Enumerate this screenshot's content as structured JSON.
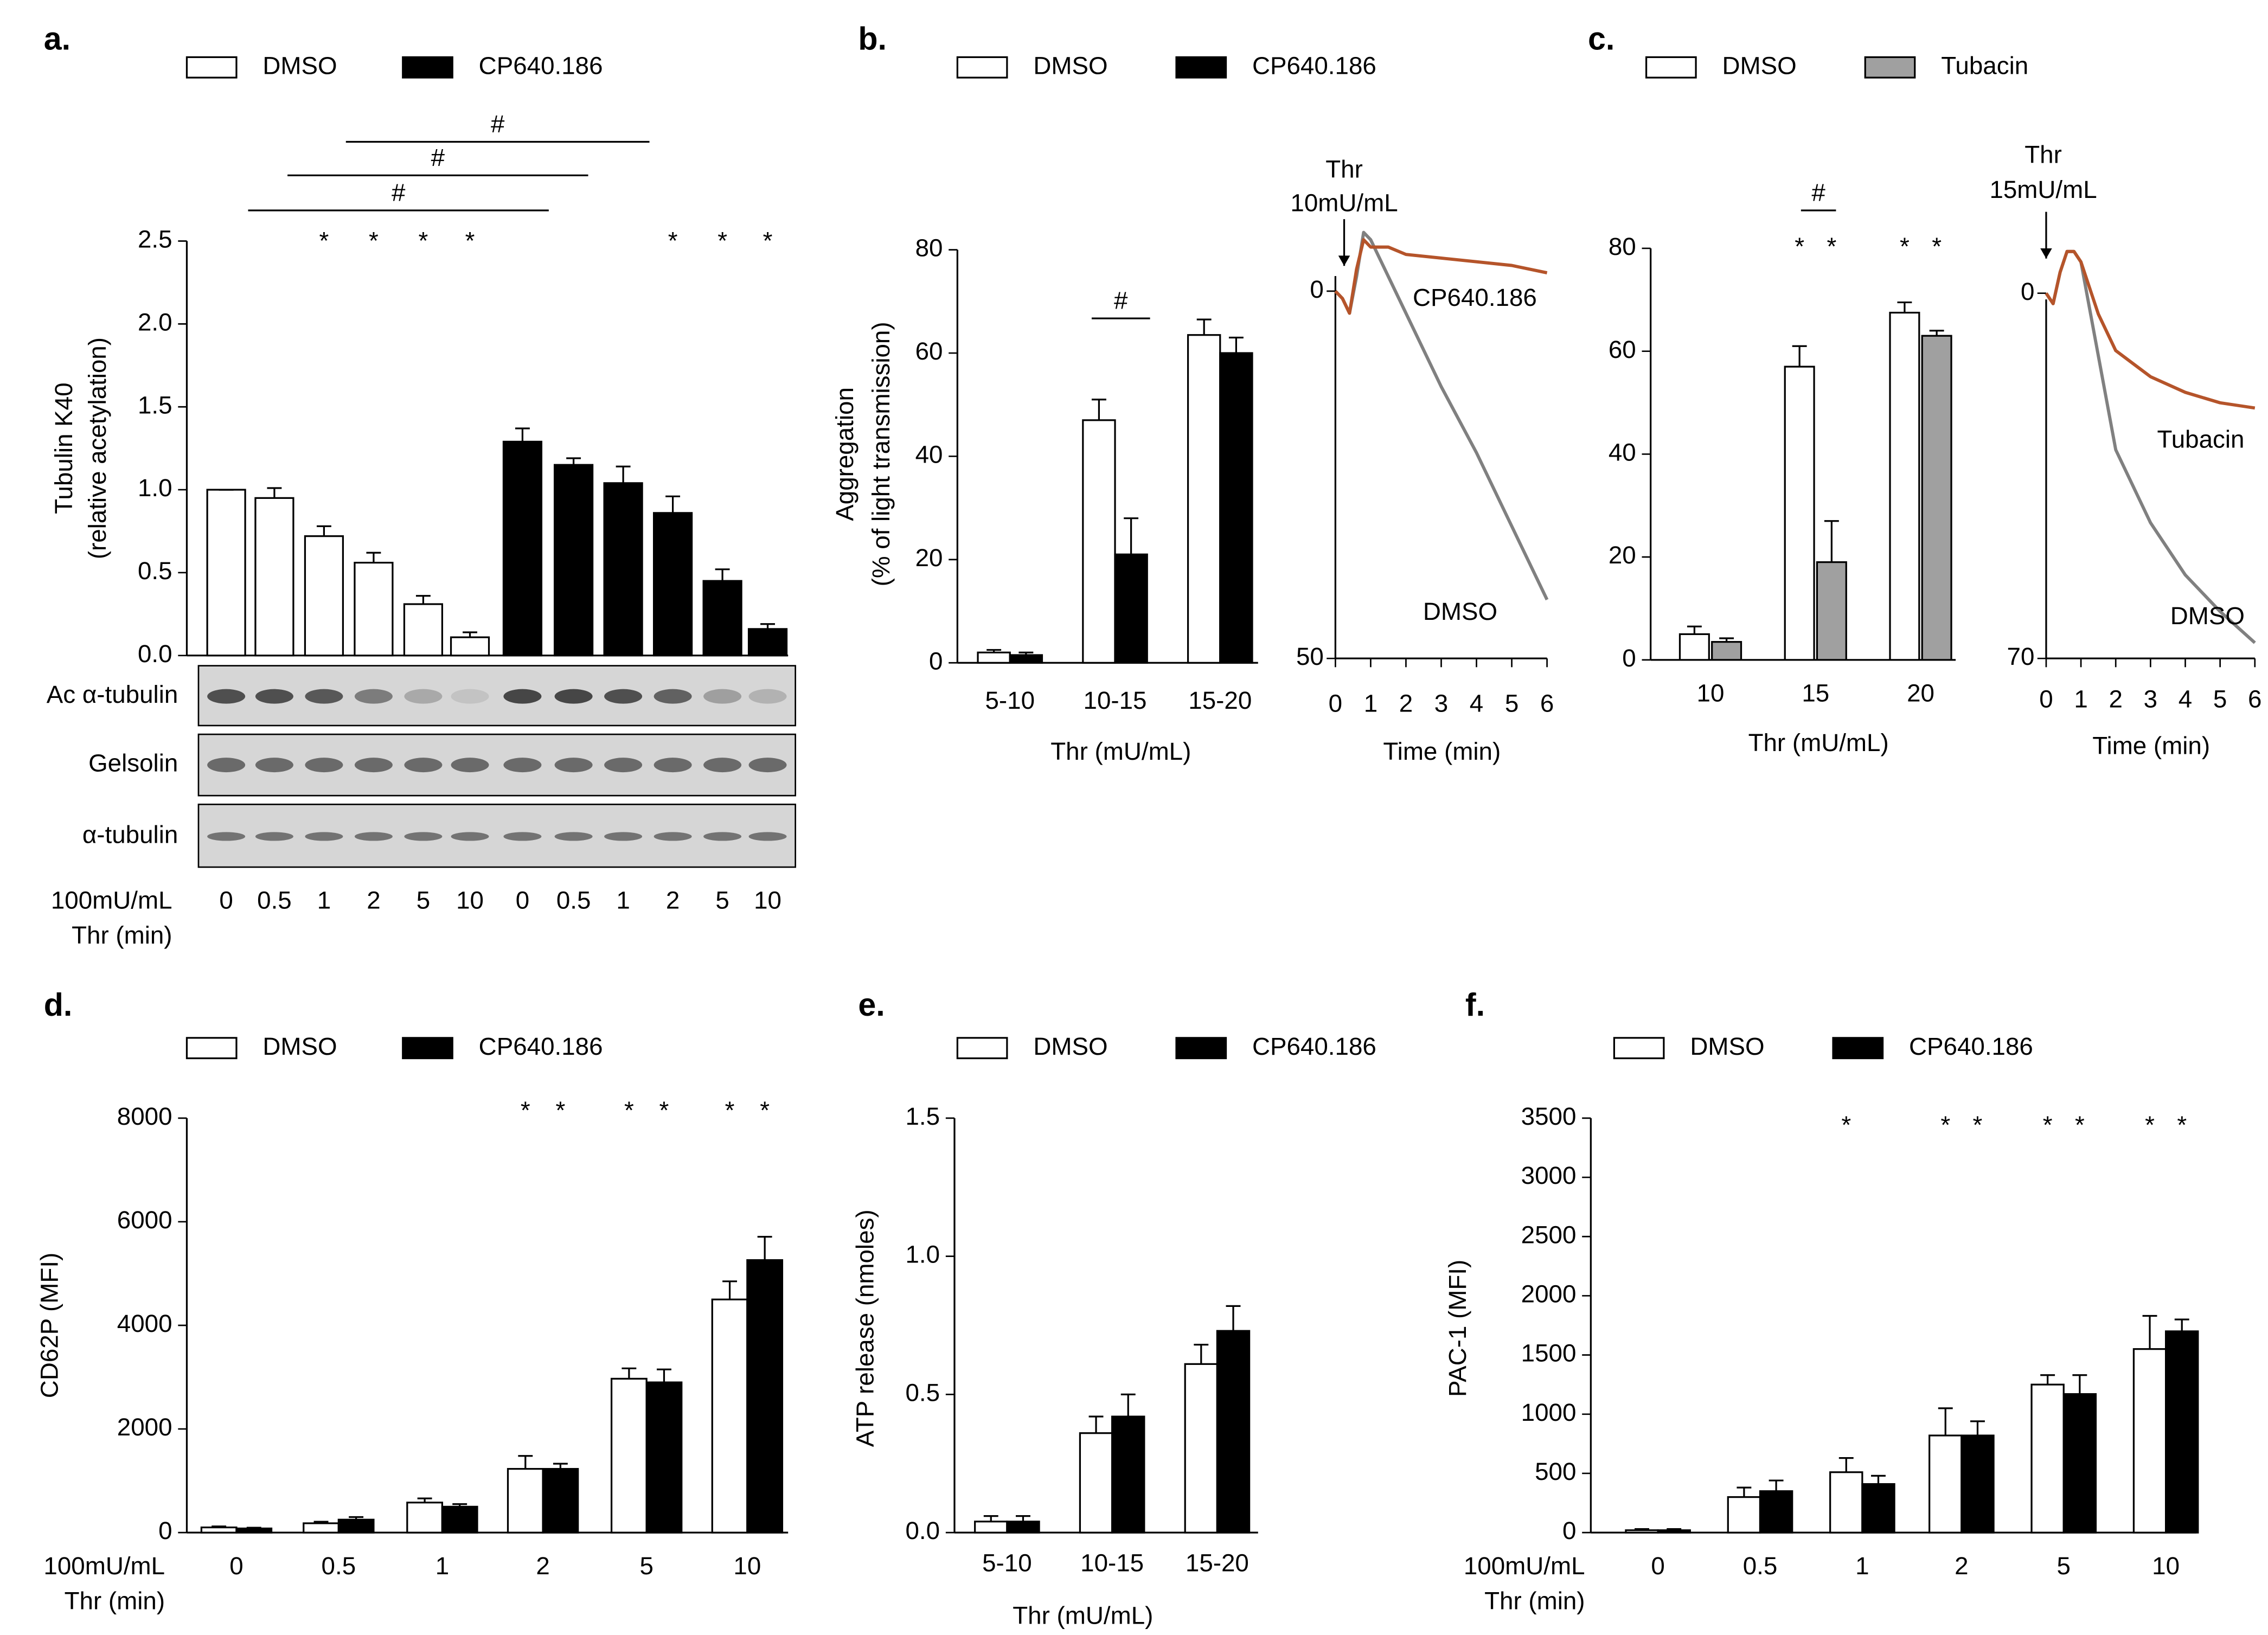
{
  "chart_data": [
    {
      "type": "bar",
      "title": "a.",
      "ylabel": [
        "Tubulin K40",
        "(relative acetylation)"
      ],
      "xlabel": [
        "100mU/mL",
        "Thr (min)"
      ],
      "categories": [
        "0",
        "0.5",
        "1",
        "2",
        "5",
        "10",
        "0",
        "0.5",
        "1",
        "2",
        "5",
        "10"
      ],
      "series": [
        {
          "name": "DMSO",
          "color": "#ffffff",
          "values": [
            1.0,
            0.95,
            0.72,
            0.56,
            0.31,
            0.11,
            null,
            null,
            null,
            null,
            null,
            null
          ],
          "errors": [
            0,
            0.06,
            0.06,
            0.06,
            0.05,
            0.03,
            null,
            null,
            null,
            null,
            null,
            null
          ],
          "significance": [
            null,
            null,
            "*",
            "*",
            "*",
            "*",
            null,
            null,
            null,
            null,
            null,
            null
          ]
        },
        {
          "name": "CP640.186",
          "color": "#000000",
          "values": [
            null,
            null,
            null,
            null,
            null,
            null,
            1.29,
            1.15,
            1.04,
            0.86,
            0.45,
            0.16
          ],
          "errors": [
            null,
            null,
            null,
            null,
            null,
            null,
            0.08,
            0.04,
            0.1,
            0.1,
            0.07,
            0.03
          ],
          "significance": [
            null,
            null,
            null,
            null,
            null,
            null,
            null,
            null,
            null,
            "*",
            "*",
            "*"
          ]
        }
      ],
      "ylim": [
        0,
        2.5
      ],
      "yticks": [
        {
          "value": 0,
          "label": "0.0"
        },
        0.5,
        {
          "value": 1,
          "label": "1.0"
        },
        1.5,
        {
          "value": 2,
          "label": "2.0"
        },
        2.5
      ],
      "brackets": [
        "#",
        "#",
        "#"
      ],
      "blots": [
        "Ac α-tubulin",
        "Gelsolin",
        "α-tubulin"
      ]
    },
    {
      "type": "bar",
      "title": "b.",
      "ylabel": [
        "Aggregation",
        "(% of light transmission)"
      ],
      "xlabel": [
        "Thr (mU/mL)"
      ],
      "categories": [
        "5-10",
        "10-15",
        "15-20"
      ],
      "series": [
        {
          "name": "DMSO",
          "color": "#ffffff",
          "values": [
            2,
            47,
            63.5
          ],
          "errors": [
            0.5,
            4,
            3
          ]
        },
        {
          "name": "CP640.186",
          "color": "#000000",
          "values": [
            1.5,
            21,
            60
          ],
          "errors": [
            0.5,
            7,
            3
          ]
        }
      ],
      "ylim": [
        0,
        80
      ],
      "yticks": [
        0,
        20,
        40,
        60,
        80
      ],
      "brackets": [
        "#"
      ]
    },
    {
      "type": "line",
      "annotation": [
        "Thr",
        "10mU/mL"
      ],
      "xlabel": [
        "Time (min)"
      ],
      "x": [
        0,
        0.2,
        0.4,
        0.6,
        0.8,
        1,
        1.5,
        2,
        3,
        4,
        5,
        6
      ],
      "series": [
        {
          "name": "DMSO",
          "color": "#808080",
          "values": [
            0,
            1,
            3,
            -2,
            -8,
            -7,
            -2,
            3,
            13,
            22,
            32,
            42
          ]
        },
        {
          "name": "CP640.186",
          "color": "#b5542a",
          "values": [
            0,
            1,
            3,
            -3,
            -7,
            -6,
            -6,
            -5,
            -4.5,
            -4,
            -3.5,
            -2.5
          ]
        }
      ],
      "xlim": [
        0,
        6
      ],
      "xticks": [
        0,
        1,
        2,
        3,
        4,
        5,
        6
      ],
      "ylim": [
        50,
        -10
      ],
      "yticks": [
        0,
        50
      ]
    },
    {
      "type": "bar",
      "title": "c.",
      "xlabel": [
        "Thr (mU/mL)"
      ],
      "categories": [
        "10",
        "15",
        "20"
      ],
      "series": [
        {
          "name": "DMSO",
          "color": "#ffffff",
          "values": [
            5,
            57,
            67.5
          ],
          "errors": [
            1.5,
            4,
            2
          ],
          "significance": [
            null,
            "*",
            "*"
          ]
        },
        {
          "name": "Tubacin",
          "color": "#a0a0a0",
          "values": [
            3.5,
            19,
            63
          ],
          "errors": [
            0.7,
            8,
            1
          ],
          "significance": [
            null,
            "*",
            "*"
          ]
        }
      ],
      "ylim": [
        0,
        80
      ],
      "yticks": [
        0,
        20,
        40,
        60,
        80
      ],
      "brackets": [
        "#"
      ]
    },
    {
      "type": "line",
      "annotation": [
        "Thr",
        "15mU/mL"
      ],
      "xlabel": [
        "Time (min)"
      ],
      "x": [
        0,
        0.2,
        0.4,
        0.6,
        0.8,
        1,
        1.5,
        2,
        3,
        4,
        5,
        6
      ],
      "series": [
        {
          "name": "DMSO",
          "color": "#808080",
          "values": [
            0,
            2,
            -4,
            -8,
            -8,
            -6,
            12,
            30,
            44,
            54,
            61,
            67
          ]
        },
        {
          "name": "Tubacin",
          "color": "#b5542a",
          "values": [
            0,
            2,
            -4,
            -8,
            -8,
            -6,
            4,
            11,
            16,
            19,
            21,
            22
          ]
        }
      ],
      "xlim": [
        0,
        6
      ],
      "xticks": [
        0,
        1,
        2,
        3,
        4,
        5,
        6
      ],
      "ylim": [
        70,
        -10
      ],
      "yticks": [
        0,
        70
      ]
    },
    {
      "type": "bar",
      "title": "d.",
      "ylabel": [
        "CD62P (MFI)"
      ],
      "xlabel": [
        "100mU/mL",
        "Thr (min)"
      ],
      "categories": [
        "0",
        "0.5",
        "1",
        "2",
        "5",
        "10"
      ],
      "series": [
        {
          "name": "DMSO",
          "color": "#ffffff",
          "values": [
            100,
            180,
            580,
            1230,
            2970,
            4500
          ],
          "errors": [
            20,
            30,
            80,
            250,
            200,
            350
          ],
          "significance": [
            null,
            null,
            null,
            "*",
            "*",
            "*"
          ]
        },
        {
          "name": "CP640.186",
          "color": "#000000",
          "values": [
            80,
            250,
            500,
            1230,
            2900,
            5260
          ],
          "errors": [
            15,
            50,
            50,
            100,
            250,
            450
          ],
          "significance": [
            null,
            null,
            null,
            "*",
            "*",
            "*"
          ]
        }
      ],
      "ylim": [
        0,
        8000
      ],
      "yticks": [
        0,
        2000,
        4000,
        6000,
        8000
      ]
    },
    {
      "type": "bar",
      "title": "e.",
      "ylabel": [
        "ATP release (nmoles)"
      ],
      "xlabel": [
        "Thr (mU/mL)"
      ],
      "categories": [
        "5-10",
        "10-15",
        "15-20"
      ],
      "series": [
        {
          "name": "DMSO",
          "color": "#ffffff",
          "values": [
            0.04,
            0.36,
            0.61
          ],
          "errors": [
            0.02,
            0.06,
            0.07
          ]
        },
        {
          "name": "CP640.186",
          "color": "#000000",
          "values": [
            0.04,
            0.42,
            0.73
          ],
          "errors": [
            0.02,
            0.08,
            0.09
          ]
        }
      ],
      "ylim": [
        0,
        1.5
      ],
      "yticks": [
        {
          "value": 0,
          "label": "0.0"
        },
        0.5,
        {
          "value": 1,
          "label": "1.0"
        },
        1.5
      ]
    },
    {
      "type": "bar",
      "title": "f.",
      "ylabel": [
        "PAC-1 (MFI)"
      ],
      "xlabel": [
        "100mU/mL",
        "Thr (min)"
      ],
      "categories": [
        "0",
        "0.5",
        "1",
        "2",
        "5",
        "10"
      ],
      "series": [
        {
          "name": "DMSO",
          "color": "#ffffff",
          "values": [
            20,
            300,
            510,
            820,
            1250,
            1550
          ],
          "errors": [
            10,
            80,
            120,
            230,
            80,
            280
          ],
          "significance": [
            null,
            null,
            "*",
            "*",
            "*",
            "*"
          ]
        },
        {
          "name": "CP640.186",
          "color": "#000000",
          "values": [
            20,
            350,
            410,
            820,
            1170,
            1700
          ],
          "errors": [
            10,
            90,
            70,
            120,
            160,
            100
          ],
          "significance": [
            null,
            null,
            null,
            "*",
            "*",
            "*"
          ]
        }
      ],
      "ylim": [
        0,
        3500
      ],
      "yticks": [
        0,
        500,
        1000,
        1500,
        2000,
        2500,
        3000,
        3500
      ]
    }
  ]
}
